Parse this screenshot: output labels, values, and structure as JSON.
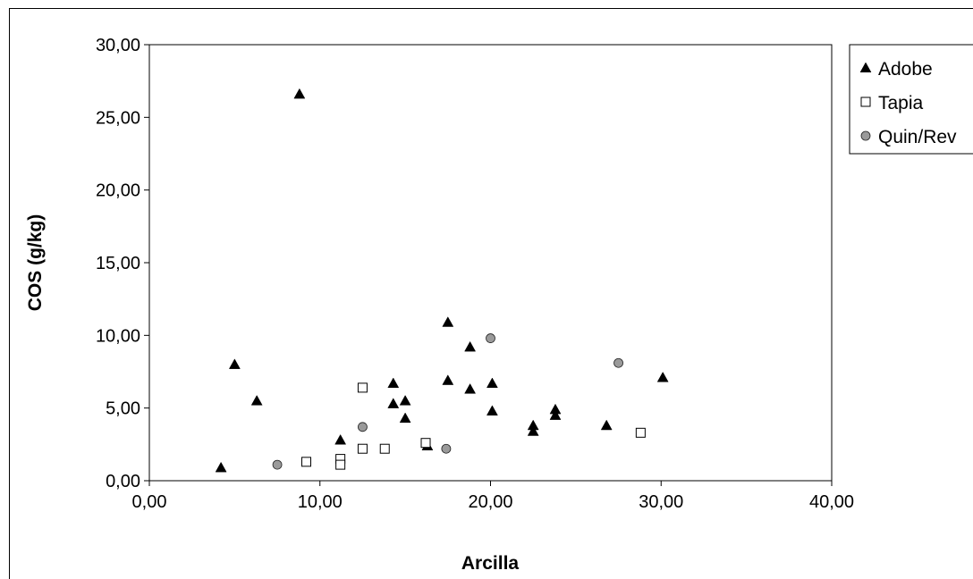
{
  "chart_data": {
    "type": "scatter",
    "xlabel": "Arcilla",
    "ylabel": "COS (g/kg)",
    "xlim": [
      0,
      40
    ],
    "ylim": [
      0,
      30
    ],
    "x_ticks": [
      "0,00",
      "10,00",
      "20,00",
      "30,00",
      "40,00"
    ],
    "y_ticks": [
      "0,00",
      "5,00",
      "10,00",
      "15,00",
      "20,00",
      "25,00",
      "30,00"
    ],
    "grid": false,
    "legend_position": "right",
    "series": [
      {
        "name": "Adobe",
        "marker": "triangle",
        "color": "#000000",
        "points": [
          [
            4.2,
            0.9
          ],
          [
            5.0,
            8.0
          ],
          [
            6.3,
            5.5
          ],
          [
            8.8,
            26.6
          ],
          [
            11.2,
            2.8
          ],
          [
            14.3,
            6.7
          ],
          [
            14.3,
            5.3
          ],
          [
            15.0,
            5.5
          ],
          [
            15.0,
            4.3
          ],
          [
            16.3,
            2.4
          ],
          [
            17.5,
            10.9
          ],
          [
            17.5,
            6.9
          ],
          [
            18.8,
            9.2
          ],
          [
            18.8,
            6.3
          ],
          [
            20.1,
            6.7
          ],
          [
            20.1,
            4.8
          ],
          [
            22.5,
            3.8
          ],
          [
            22.5,
            3.4
          ],
          [
            23.8,
            4.9
          ],
          [
            23.8,
            4.5
          ],
          [
            26.8,
            3.8
          ],
          [
            30.1,
            7.1
          ]
        ]
      },
      {
        "name": "Tapia",
        "marker": "square-open",
        "color": "#000000",
        "points": [
          [
            9.2,
            1.3
          ],
          [
            11.2,
            1.5
          ],
          [
            11.2,
            1.1
          ],
          [
            12.5,
            6.4
          ],
          [
            12.5,
            2.2
          ],
          [
            13.8,
            2.2
          ],
          [
            16.2,
            2.6
          ],
          [
            28.8,
            3.3
          ]
        ]
      },
      {
        "name": "Quin/Rev",
        "marker": "circle",
        "color": "#9a9a9a",
        "points": [
          [
            7.5,
            1.1
          ],
          [
            12.5,
            3.7
          ],
          [
            17.4,
            2.2
          ],
          [
            20.0,
            9.8
          ],
          [
            27.5,
            8.1
          ]
        ]
      }
    ]
  }
}
